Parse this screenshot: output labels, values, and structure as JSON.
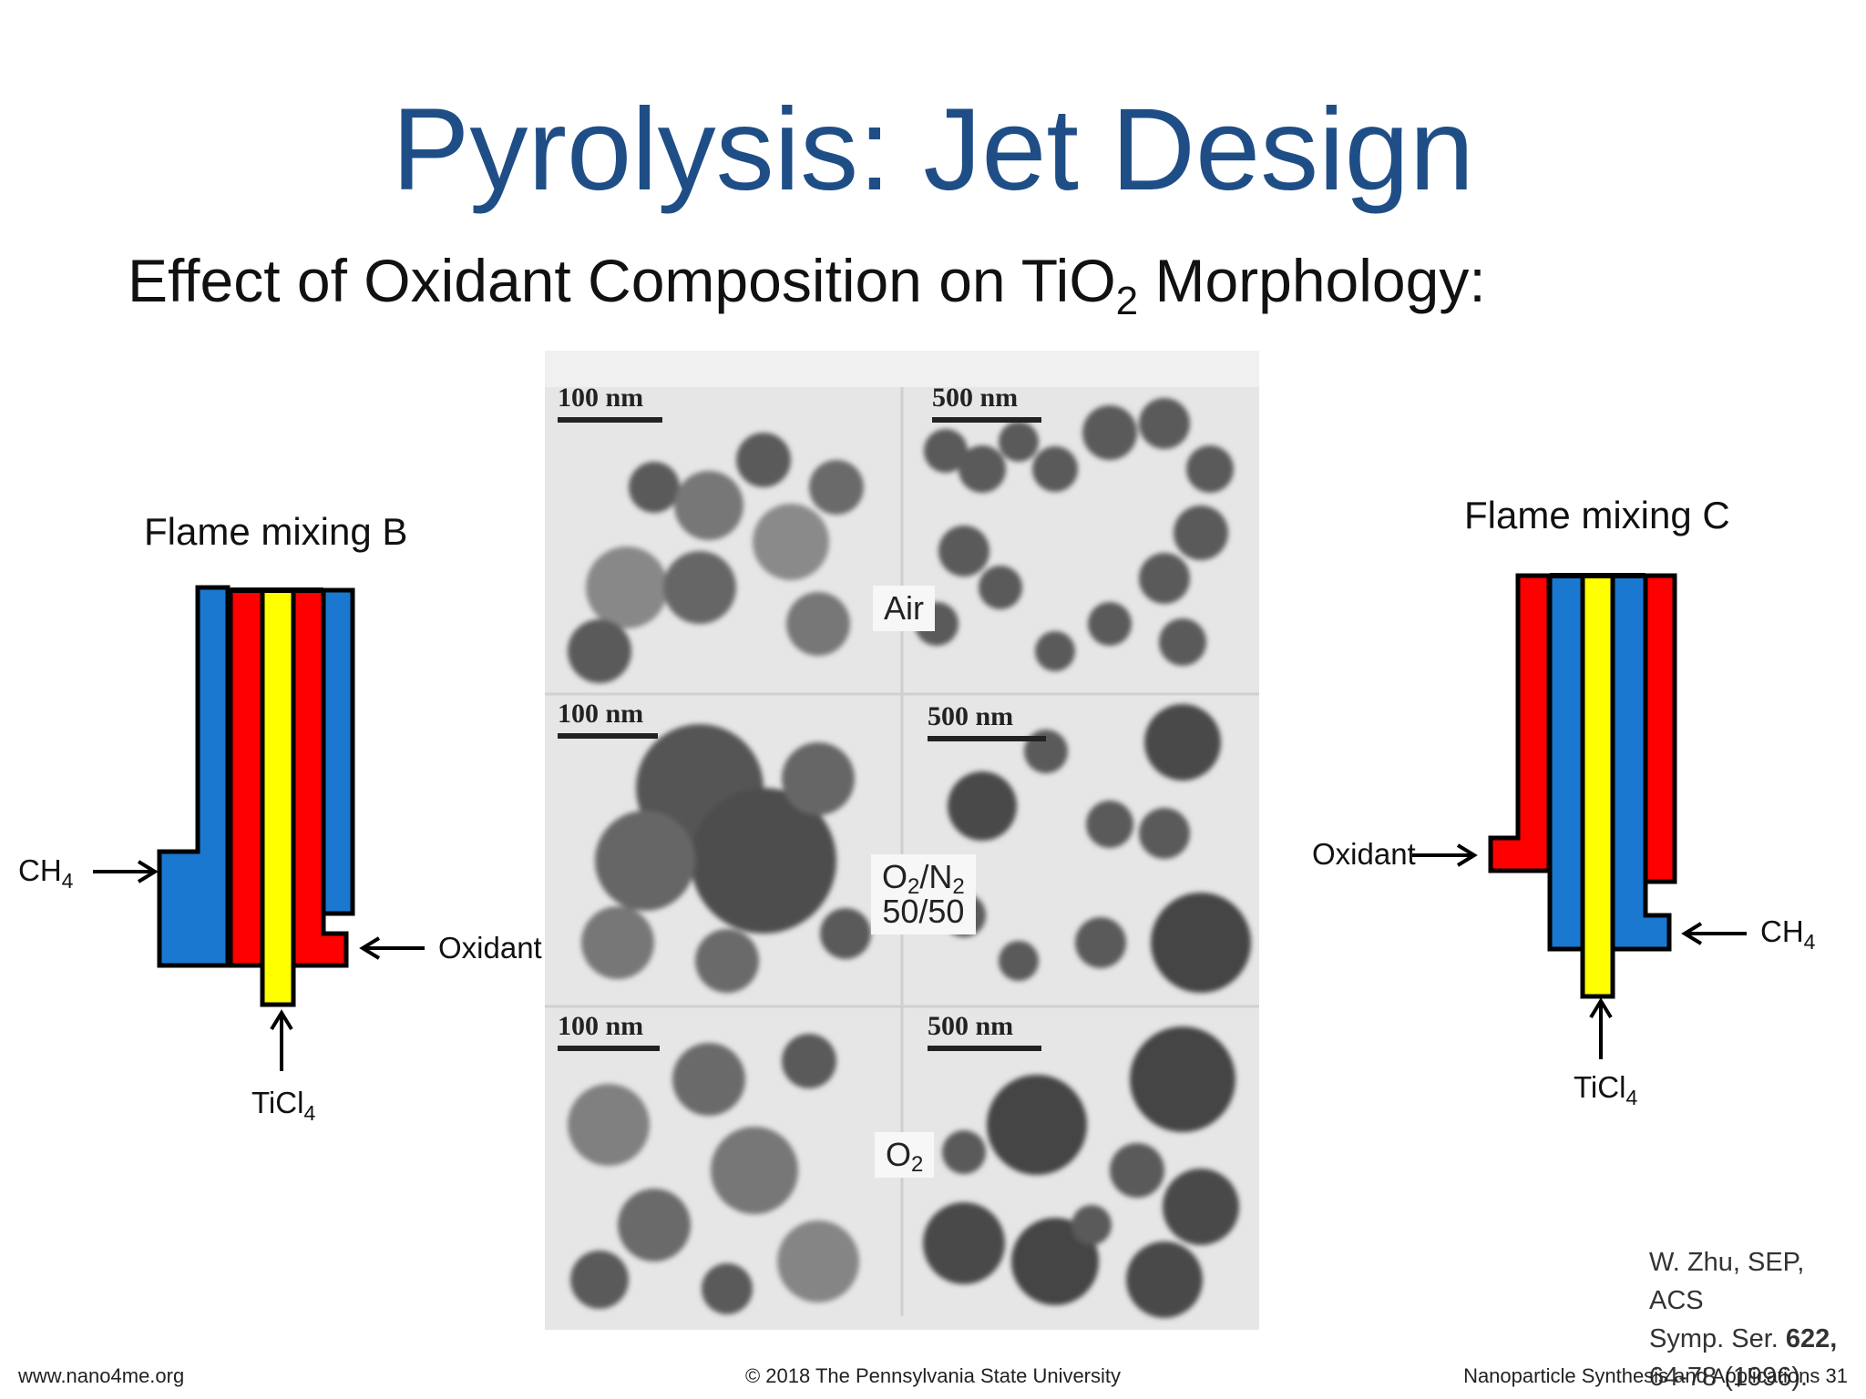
{
  "slide": {
    "title": "Pyrolysis: Jet Design",
    "subtitle_main": "Effect of Oxidant Composition on TiO",
    "subtitle_sub": "2",
    "subtitle_tail": " Morphology:"
  },
  "diagram_b": {
    "title": "Flame mixing B",
    "ch4_main": "CH",
    "ch4_sub": "4",
    "oxidant": "Oxidant",
    "ticl_main": "TiCl",
    "ticl_sub": "4"
  },
  "diagram_c": {
    "title": "Flame mixing C",
    "oxidant": "Oxidant",
    "ch4_main": "CH",
    "ch4_sub": "4",
    "ticl_main": "TiCl",
    "ticl_sub": "4"
  },
  "colors": {
    "title": "#1f4e87",
    "blue": "#1a78d0",
    "red": "#ff0000",
    "yellow": "#ffff00"
  },
  "micrographs": {
    "rows": [
      {
        "label": "Air",
        "left_scale": "100 nm",
        "right_scale": "500 nm"
      },
      {
        "label_l1_a": "O",
        "label_l1_b": "2",
        "label_l1_c": "/N",
        "label_l1_d": "2",
        "label_l2": "50/50",
        "left_scale": "100 nm",
        "right_scale": "500 nm"
      },
      {
        "label_a": "O",
        "label_b": "2",
        "left_scale": "100 nm",
        "right_scale": "500 nm"
      }
    ]
  },
  "reference": {
    "line1": "W. Zhu, SEP, ACS",
    "line2_a": "Symp. Ser. ",
    "line2_b": "622,",
    "line3": "64-78 (1996)."
  },
  "footer": {
    "left": "www.nano4me.org",
    "center": "© 2018 The Pennsylvania State University",
    "right": "Nanoparticle Synthesis and Applications 31"
  }
}
